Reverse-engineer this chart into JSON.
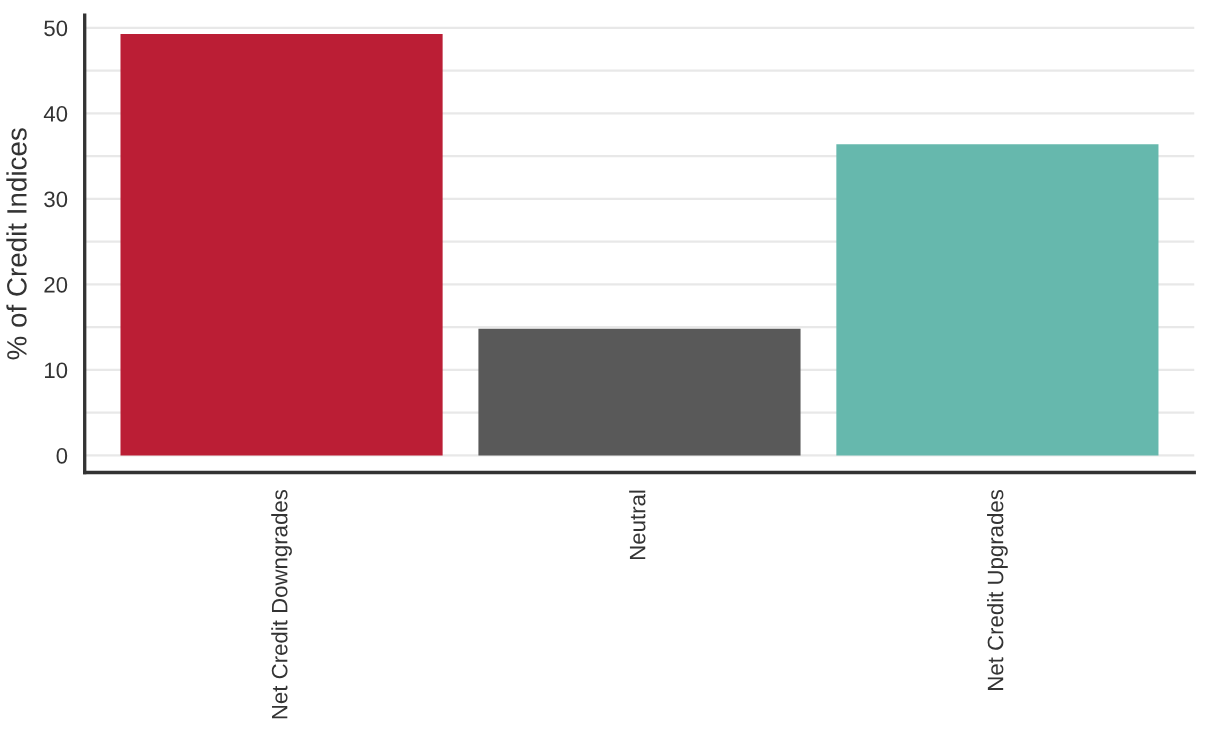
{
  "chart_data": {
    "type": "bar",
    "ylabel": "% of Credit Indices",
    "categories": [
      "Net Credit Downgrades",
      "Neutral",
      "Net Credit Upgrades"
    ],
    "values": [
      49.3,
      14.8,
      36.4
    ],
    "colors": [
      "#bb1e35",
      "#595959",
      "#66b8ad"
    ],
    "ylim": [
      -2,
      51.5
    ],
    "yticks": [
      0,
      {
        "value": 5,
        "label": null
      },
      10,
      {
        "value": 15,
        "label": null
      },
      20,
      {
        "value": 25,
        "label": null
      },
      30,
      {
        "value": 35,
        "label": null
      },
      40,
      {
        "value": 45,
        "label": null
      },
      50
    ],
    "grid": "y"
  }
}
